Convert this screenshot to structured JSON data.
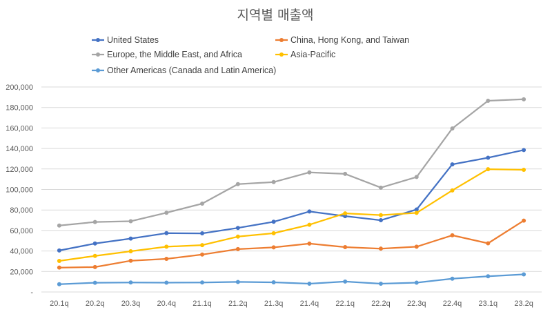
{
  "chart_data": {
    "type": "line",
    "title": "지역별 매출액",
    "xlabel": "",
    "ylabel": "",
    "categories": [
      "20.1q",
      "20.2q",
      "20.3q",
      "20.4q",
      "21.1q",
      "21.2q",
      "21.3q",
      "21.4q",
      "22.1q",
      "22.2q",
      "22.3q",
      "22.4q",
      "23.1q",
      "23.2q"
    ],
    "ylim": [
      0,
      200000
    ],
    "yticks": [
      0,
      20000,
      40000,
      60000,
      80000,
      100000,
      120000,
      140000,
      160000,
      180000,
      200000
    ],
    "ytick_labels": [
      "-",
      "20,000",
      "40,000",
      "60,000",
      "80,000",
      "100,000",
      "120,000",
      "140,000",
      "160,000",
      "180,000",
      "200,000"
    ],
    "grid": true,
    "legend_position": "top-left",
    "series": [
      {
        "name": "United States",
        "color": "#4472C4",
        "values": [
          40500,
          47300,
          52100,
          57400,
          57200,
          62500,
          68500,
          78500,
          74000,
          70000,
          80500,
          124500,
          131000,
          138500
        ]
      },
      {
        "name": "China, Hong Kong, and Taiwan",
        "color": "#ED7D31",
        "values": [
          23800,
          24300,
          30500,
          32300,
          36500,
          41800,
          43500,
          47200,
          43800,
          42300,
          44200,
          55300,
          47500,
          69600
        ]
      },
      {
        "name": "Europe, the Middle East, and Africa",
        "color": "#A5A5A5",
        "values": [
          64800,
          68300,
          69000,
          77300,
          86200,
          105200,
          107200,
          116700,
          115200,
          101800,
          112200,
          159500,
          186500,
          188000
        ]
      },
      {
        "name": "Asia-Pacific",
        "color": "#FFC000",
        "values": [
          30300,
          35200,
          39700,
          44200,
          45700,
          54000,
          57300,
          65600,
          76700,
          75000,
          77200,
          99100,
          119800,
          119200
        ]
      },
      {
        "name": "Other Americas (Canada and Latin America)",
        "color": "#5B9BD5",
        "values": [
          7600,
          9000,
          9300,
          9100,
          9300,
          9800,
          9400,
          8100,
          10200,
          8100,
          9100,
          13000,
          15300,
          17200
        ]
      }
    ]
  }
}
